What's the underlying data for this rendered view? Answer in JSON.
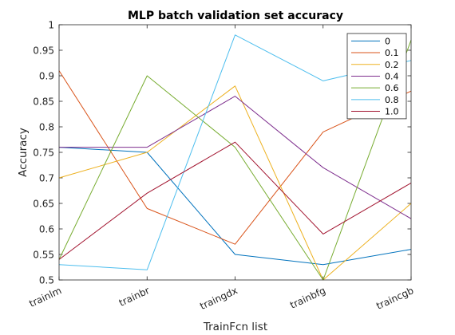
{
  "chart_data": {
    "type": "line",
    "title": "MLP batch validation set accuracy",
    "xlabel": "TrainFcn list",
    "ylabel": "Accuracy",
    "categories": [
      "trainlm",
      "trainbr",
      "traingdx",
      "trainbfg",
      "traincgb"
    ],
    "ylim": [
      0.5,
      1
    ],
    "yticks": [
      "0.5",
      "0.55",
      "0.6",
      "0.65",
      "0.7",
      "0.75",
      "0.8",
      "0.85",
      "0.9",
      "0.95",
      "1"
    ],
    "grid": false,
    "legend_position": "top-right",
    "series": [
      {
        "name": "0",
        "color": "#0072bd",
        "values": [
          0.76,
          0.75,
          0.55,
          0.53,
          0.56
        ]
      },
      {
        "name": "0.1",
        "color": "#d95319",
        "values": [
          0.91,
          0.64,
          0.57,
          0.79,
          0.87
        ]
      },
      {
        "name": "0.2",
        "color": "#edb120",
        "values": [
          0.7,
          0.75,
          0.88,
          0.5,
          0.65
        ]
      },
      {
        "name": "0.4",
        "color": "#7e2f8e",
        "values": [
          0.76,
          0.76,
          0.86,
          0.72,
          0.62
        ]
      },
      {
        "name": "0.6",
        "color": "#77ac30",
        "values": [
          0.54,
          0.9,
          0.76,
          0.5,
          0.97
        ]
      },
      {
        "name": "0.8",
        "color": "#4dbeee",
        "values": [
          0.53,
          0.52,
          0.98,
          0.89,
          0.93
        ]
      },
      {
        "name": "1.0",
        "color": "#a2142f",
        "values": [
          0.54,
          0.67,
          0.77,
          0.59,
          0.69
        ]
      }
    ]
  }
}
